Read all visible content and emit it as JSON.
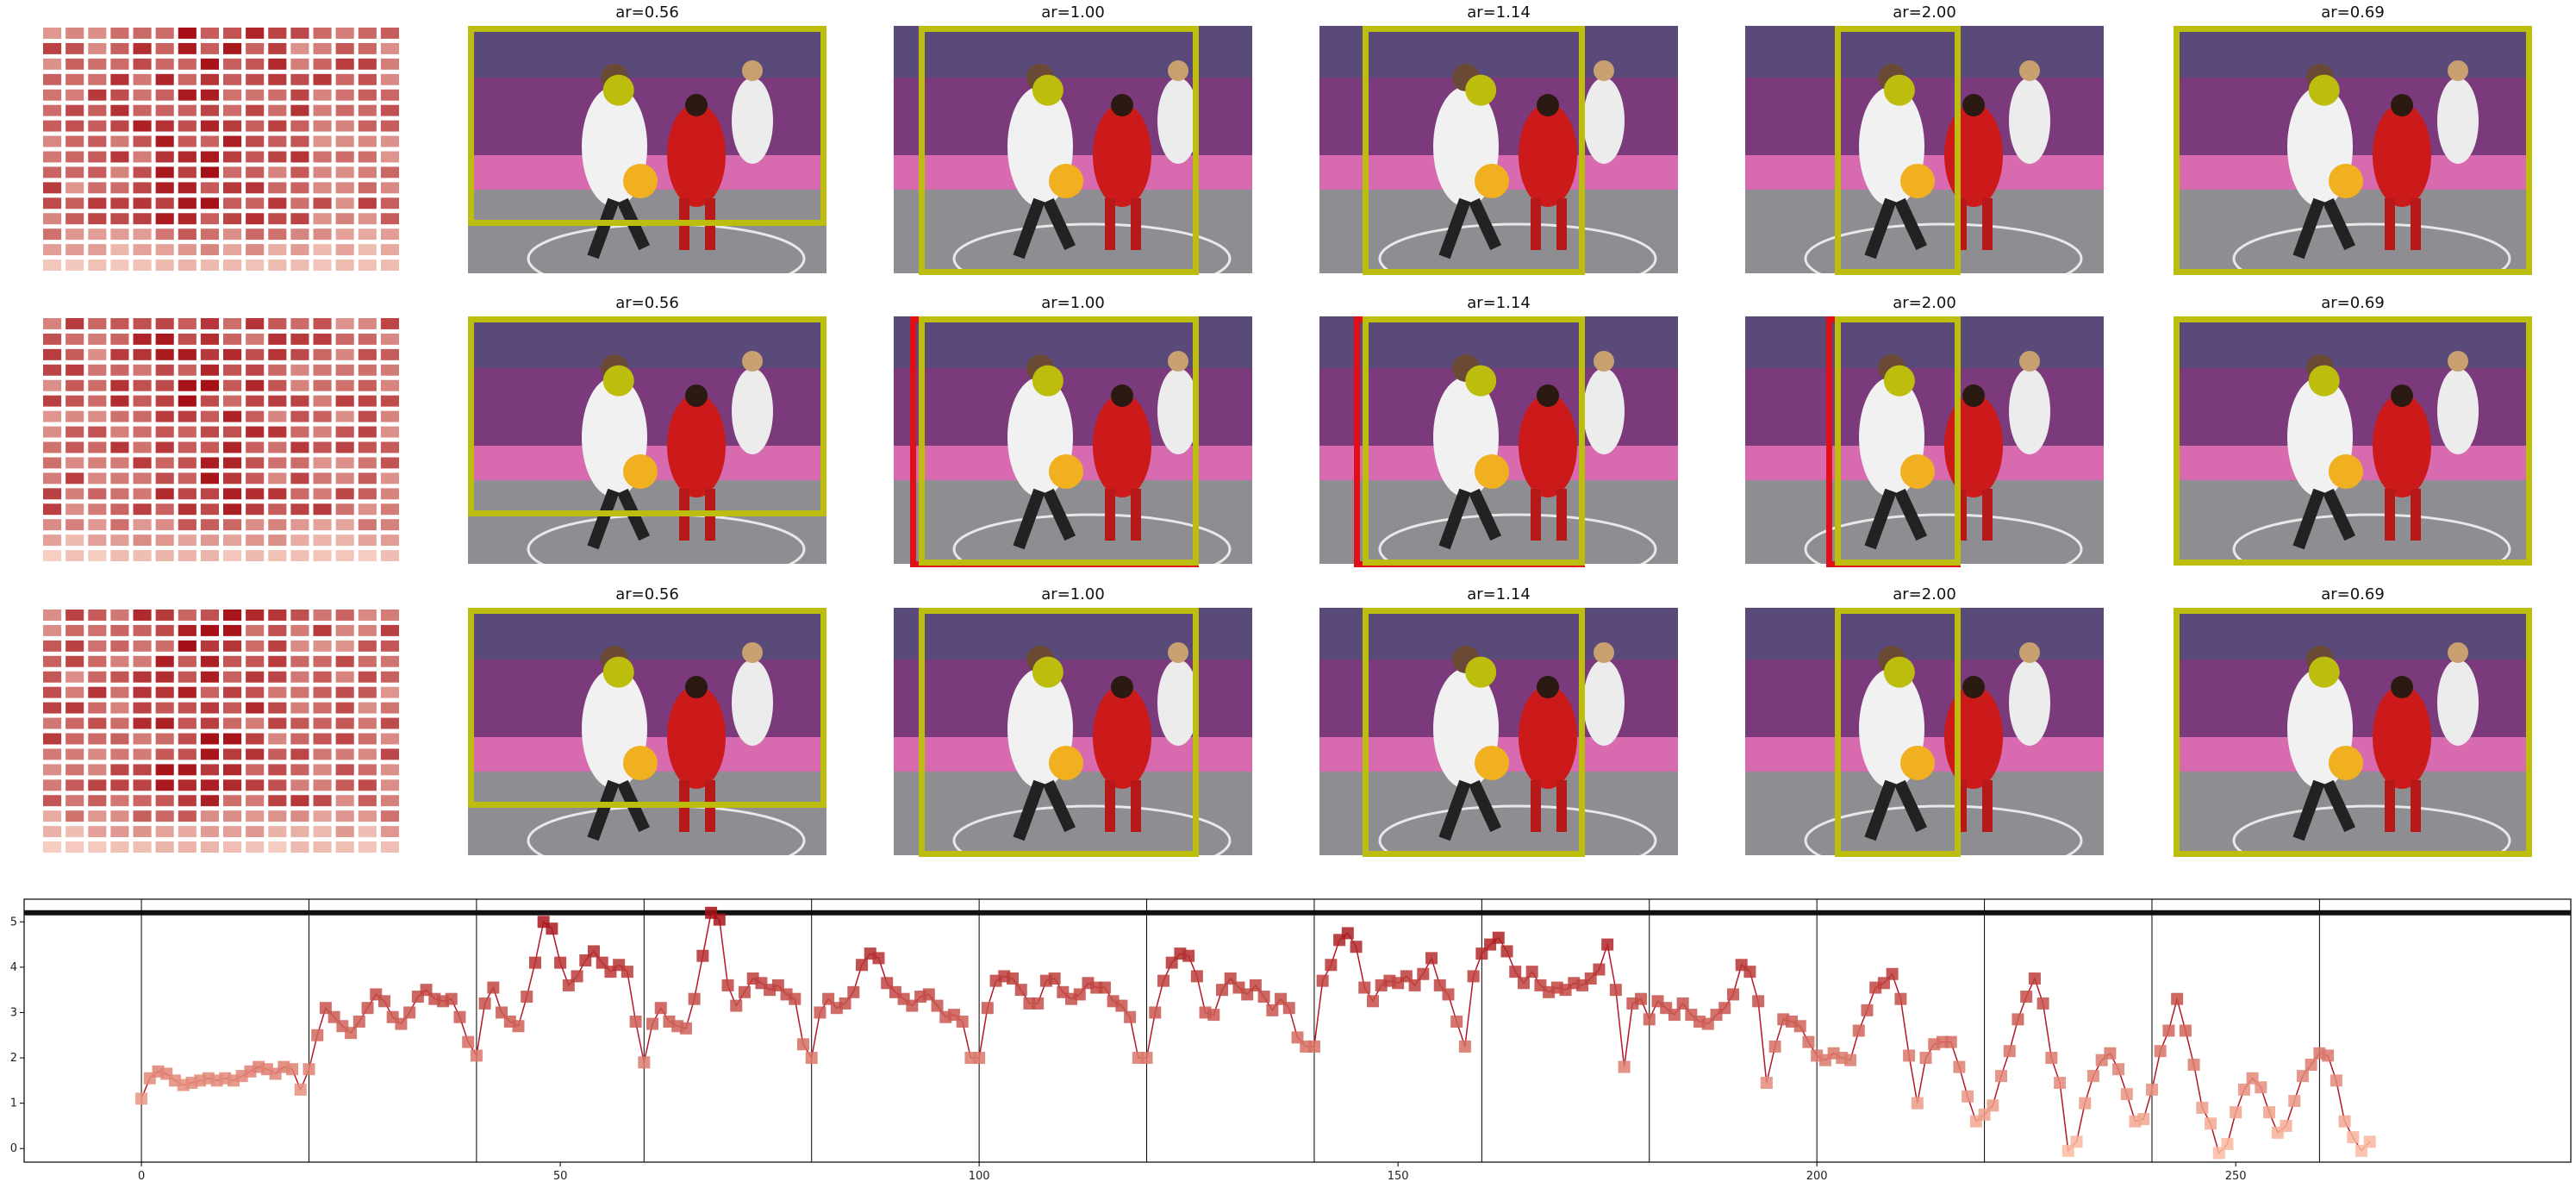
{
  "colors": {
    "box_yellow": "#bdbd0e",
    "box_red": "#e0101a",
    "marker_dark": "#a50f15",
    "marker_light": "#fcbba1",
    "line": "#b2182b",
    "court": "#8e8d92",
    "wall": "#7a3a7c"
  },
  "rows": [
    {
      "panels": [
        {
          "title": "ar=0.56",
          "red_box": false
        },
        {
          "title": "ar=1.00",
          "red_box": false
        },
        {
          "title": "ar=1.14",
          "red_box": false
        },
        {
          "title": "ar=2.00",
          "red_box": false
        },
        {
          "title": "ar=0.69",
          "red_box": false
        }
      ]
    },
    {
      "panels": [
        {
          "title": "ar=0.56",
          "red_box": false
        },
        {
          "title": "ar=1.00",
          "red_box": true
        },
        {
          "title": "ar=1.14",
          "red_box": true
        },
        {
          "title": "ar=2.00",
          "red_box": true
        },
        {
          "title": "ar=0.69",
          "red_box": false
        }
      ]
    },
    {
      "panels": [
        {
          "title": "ar=0.56",
          "red_box": false
        },
        {
          "title": "ar=1.00",
          "red_box": false
        },
        {
          "title": "ar=1.14",
          "red_box": false
        },
        {
          "title": "ar=2.00",
          "red_box": false
        },
        {
          "title": "ar=0.69",
          "red_box": false
        }
      ]
    }
  ],
  "chart_data": {
    "type": "line",
    "xlim": [
      -14,
      290
    ],
    "ylim": [
      -0.3,
      5.5
    ],
    "xticks": [
      0,
      50,
      100,
      150,
      200,
      250
    ],
    "yticks": [
      0,
      1,
      2,
      3,
      4,
      5
    ],
    "reference_line_y": 5.2,
    "segment_boundaries": [
      0,
      20,
      40,
      60,
      80,
      100,
      120,
      140,
      160,
      180,
      200,
      220,
      240,
      260
    ],
    "series": [
      {
        "values": [
          1.1,
          1.55,
          1.7,
          1.65,
          1.5,
          1.4,
          1.45,
          1.5,
          1.55,
          1.5,
          1.55,
          1.5,
          1.6,
          1.7,
          1.8,
          1.75,
          1.65,
          1.8,
          1.75,
          1.3,
          1.75,
          2.5,
          3.1,
          2.9,
          2.7,
          2.55,
          2.8,
          3.1,
          3.4,
          3.25,
          2.9,
          2.75,
          3.0,
          3.35,
          3.5,
          3.3,
          3.25,
          3.3,
          2.9,
          2.35,
          2.05,
          3.2,
          3.55,
          3.0,
          2.8,
          2.7,
          3.35,
          4.1,
          5.0,
          4.85,
          4.1,
          3.6,
          3.8,
          4.15,
          4.35,
          4.1,
          3.9,
          4.05,
          3.9,
          2.8,
          1.9,
          2.75,
          3.1,
          2.8,
          2.7,
          2.65,
          3.3,
          4.25,
          5.2,
          5.05,
          3.6,
          3.15,
          3.45,
          3.75,
          3.65,
          3.5,
          3.6,
          3.4,
          3.3,
          2.3,
          2.0,
          3.0,
          3.3,
          3.1,
          3.2,
          3.45,
          4.05,
          4.3,
          4.2,
          3.65,
          3.45,
          3.3,
          3.15,
          3.35,
          3.4,
          3.15,
          2.9,
          2.95,
          2.8,
          2.0,
          2.0,
          3.1,
          3.7,
          3.8,
          3.75,
          3.5,
          3.2,
          3.2,
          3.7,
          3.75,
          3.45,
          3.3,
          3.4,
          3.65,
          3.55,
          3.55,
          3.25,
          3.15,
          2.9,
          2.0,
          2.0,
          3.0,
          3.7,
          4.1,
          4.3,
          4.25,
          3.8,
          3.0,
          2.95,
          3.5,
          3.75,
          3.55,
          3.4,
          3.6,
          3.35,
          3.05,
          3.3,
          3.1,
          2.45,
          2.25,
          2.25,
          3.7,
          4.05,
          4.6,
          4.75,
          4.45,
          3.55,
          3.25,
          3.6,
          3.7,
          3.65,
          3.8,
          3.6,
          3.85,
          4.2,
          3.6,
          3.4,
          2.8,
          2.25,
          3.8,
          4.3,
          4.5,
          4.65,
          4.35,
          3.9,
          3.65,
          3.9,
          3.6,
          3.45,
          3.55,
          3.5,
          3.65,
          3.6,
          3.75,
          3.95,
          4.5,
          3.5,
          1.8,
          3.2,
          3.3,
          2.85,
          3.25,
          3.1,
          2.95,
          3.2,
          2.95,
          2.8,
          2.75,
          2.95,
          3.1,
          3.4,
          4.05,
          3.9,
          3.25,
          1.45,
          2.25,
          2.85,
          2.8,
          2.7,
          2.35,
          2.05,
          1.95,
          2.1,
          2.0,
          1.95,
          2.6,
          3.05,
          3.55,
          3.65,
          3.85,
          3.3,
          2.05,
          1.0,
          2.0,
          2.3,
          2.35,
          2.35,
          1.8,
          1.15,
          0.6,
          0.75,
          0.95,
          1.6,
          2.15,
          2.85,
          3.35,
          3.75,
          3.2,
          2.0,
          1.45,
          -0.05,
          0.15,
          1.0,
          1.6,
          1.95,
          2.1,
          1.75,
          1.2,
          0.6,
          0.65,
          1.3,
          2.15,
          2.6,
          3.3,
          2.6,
          1.85,
          0.9,
          0.55,
          -0.1,
          0.1,
          0.8,
          1.3,
          1.55,
          1.35,
          0.8,
          0.35,
          0.5,
          1.05,
          1.6,
          1.85,
          2.1,
          2.05,
          1.5,
          0.6,
          0.25,
          -0.05,
          0.15
        ]
      }
    ]
  }
}
